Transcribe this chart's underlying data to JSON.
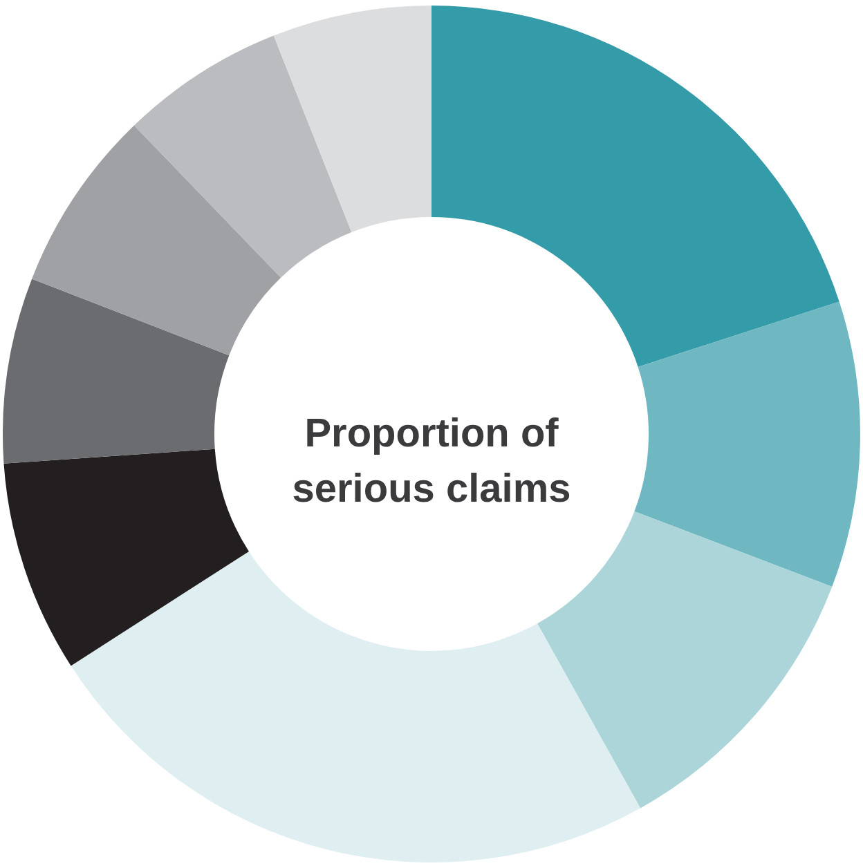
{
  "chart_data": {
    "type": "donut",
    "title": "Proportion of serious claims",
    "categories": [
      null,
      null,
      null,
      null,
      null,
      null,
      null,
      null,
      null
    ],
    "values": [
      20,
      10.8,
      11.1,
      24,
      8,
      7,
      6.9,
      6.2,
      6
    ],
    "colors": [
      "#349ba8",
      "#6fb8c2",
      "#acd5da",
      "#dfeff1",
      "#231f20",
      "#6b6c70",
      "#a0a1a5",
      "#bbbcc0",
      "#dcdddf"
    ]
  }
}
